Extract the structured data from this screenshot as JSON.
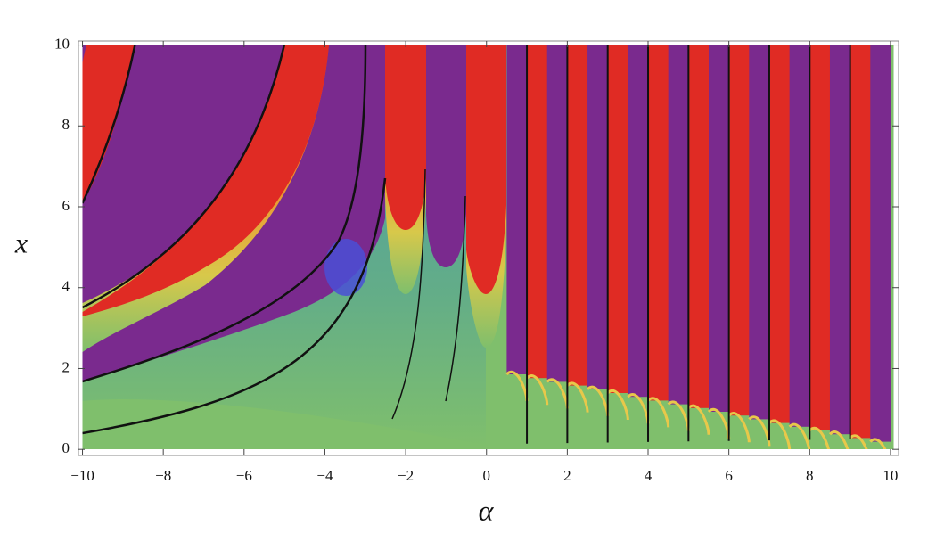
{
  "chart_data": {
    "type": "density",
    "x_label": "α",
    "y_label": "x",
    "xlim": [
      -10.1,
      10.2
    ],
    "ylim": [
      -0.15,
      10.1
    ],
    "xticks": [
      {
        "value": -10,
        "label": "−10"
      },
      {
        "value": -8,
        "label": "−8"
      },
      {
        "value": -6,
        "label": "−6"
      },
      {
        "value": -4,
        "label": "−4"
      },
      {
        "value": -2,
        "label": "−2"
      },
      0,
      2,
      4,
      6,
      8,
      10
    ],
    "yticks": [
      0,
      2,
      4,
      6,
      8,
      10
    ]
  }
}
